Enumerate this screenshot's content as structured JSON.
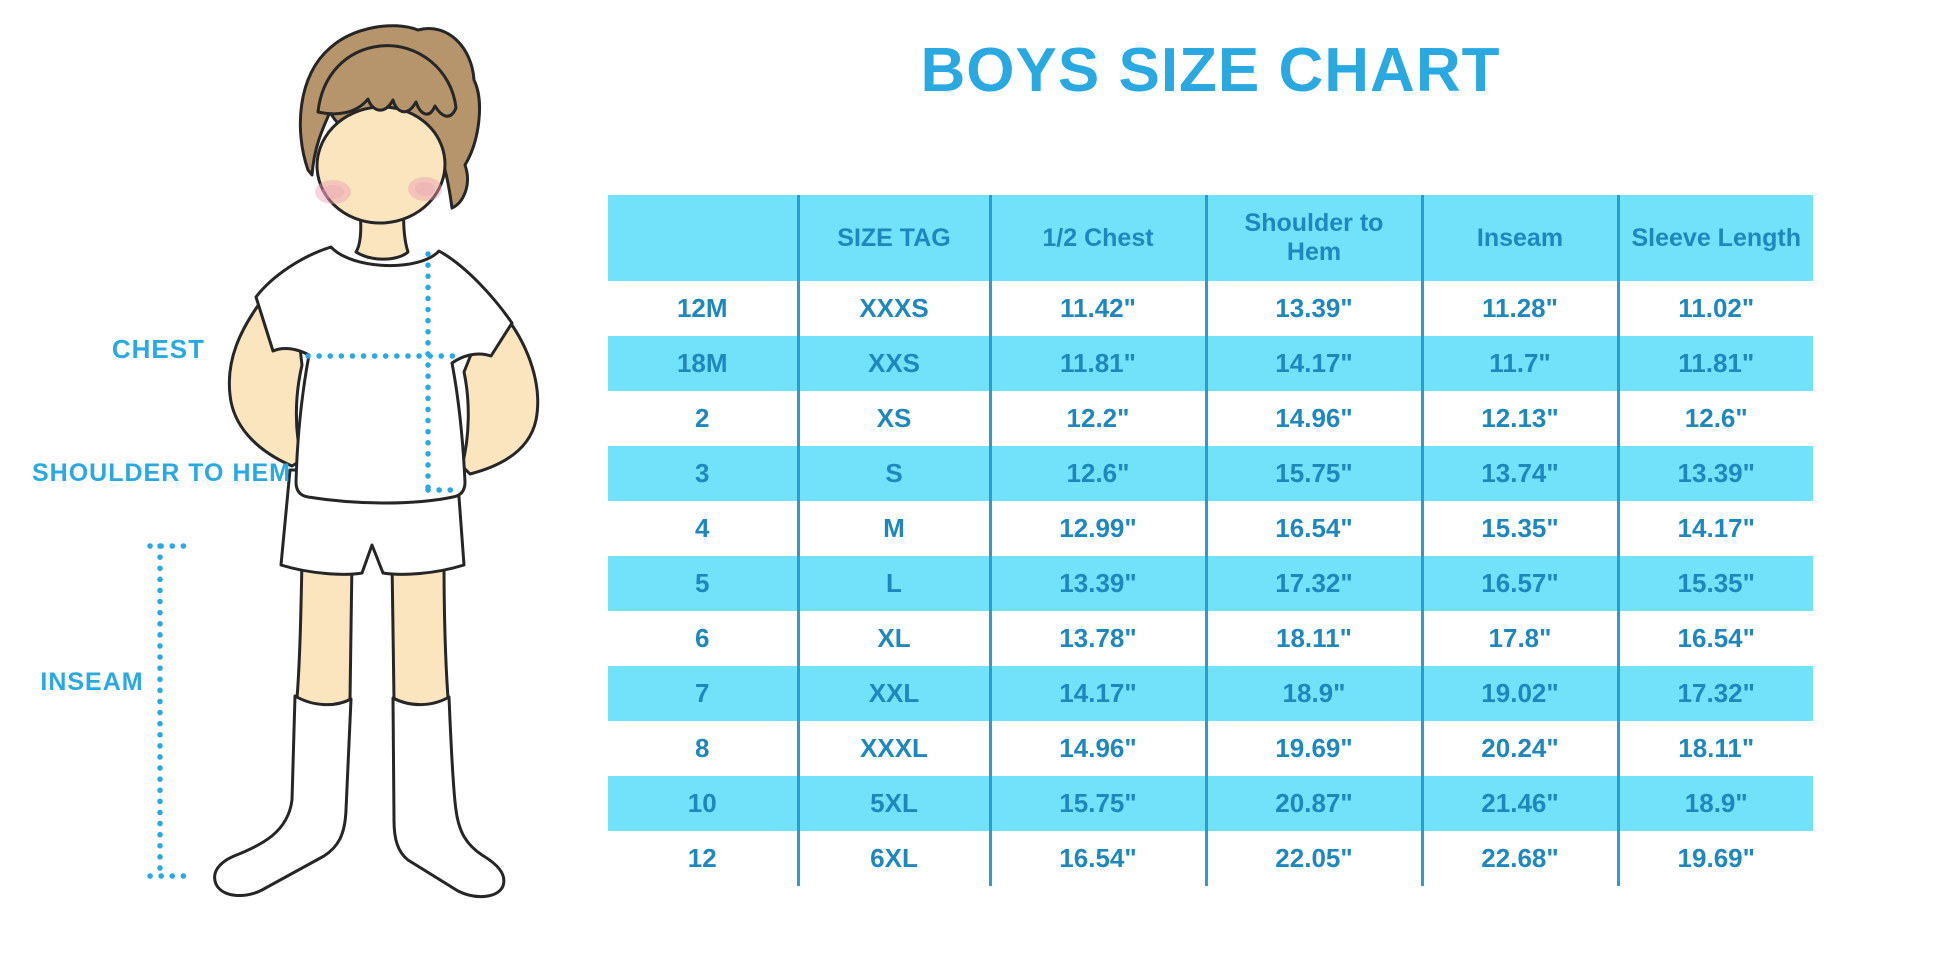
{
  "title": "BOYS SIZE CHART",
  "colors": {
    "accent": "#29A9E0",
    "table_fill": "#72E1FA",
    "table_text": "#1E88BC",
    "table_divider": "#2C9CCF",
    "skin": "#FAE5BE",
    "hair": "#B6956C",
    "outline": "#262626",
    "cheek": "#EC9DB4"
  },
  "figure": {
    "labels": {
      "chest": "CHEST",
      "shoulder_to_hem": "SHOULDER TO HEM",
      "inseam": "INSEAM"
    }
  },
  "chart_data": {
    "type": "table",
    "title": "BOYS SIZE CHART",
    "columns": [
      "",
      "SIZE TAG",
      "1/2 Chest",
      "Shoulder to Hem",
      "Inseam",
      "Sleeve Length"
    ],
    "rows": [
      [
        "12M",
        "XXXS",
        "11.42\"",
        "13.39\"",
        "11.28\"",
        "11.02\""
      ],
      [
        "18M",
        "XXS",
        "11.81\"",
        "14.17\"",
        "11.7\"",
        "11.81\""
      ],
      [
        "2",
        "XS",
        "12.2\"",
        "14.96\"",
        "12.13\"",
        "12.6\""
      ],
      [
        "3",
        "S",
        "12.6\"",
        "15.75\"",
        "13.74\"",
        "13.39\""
      ],
      [
        "4",
        "M",
        "12.99\"",
        "16.54\"",
        "15.35\"",
        "14.17\""
      ],
      [
        "5",
        "L",
        "13.39\"",
        "17.32\"",
        "16.57\"",
        "15.35\""
      ],
      [
        "6",
        "XL",
        "13.78\"",
        "18.11\"",
        "17.8\"",
        "16.54\""
      ],
      [
        "7",
        "XXL",
        "14.17\"",
        "18.9\"",
        "19.02\"",
        "17.32\""
      ],
      [
        "8",
        "XXXL",
        "14.96\"",
        "19.69\"",
        "20.24\"",
        "18.11\""
      ],
      [
        "10",
        "5XL",
        "15.75\"",
        "20.87\"",
        "21.46\"",
        "18.9\""
      ],
      [
        "12",
        "6XL",
        "16.54\"",
        "22.05\"",
        "22.68\"",
        "19.69\""
      ]
    ],
    "layout": {
      "striping": "rows alternate white and cyan starting with white",
      "grid": "vertical dividers only"
    }
  }
}
